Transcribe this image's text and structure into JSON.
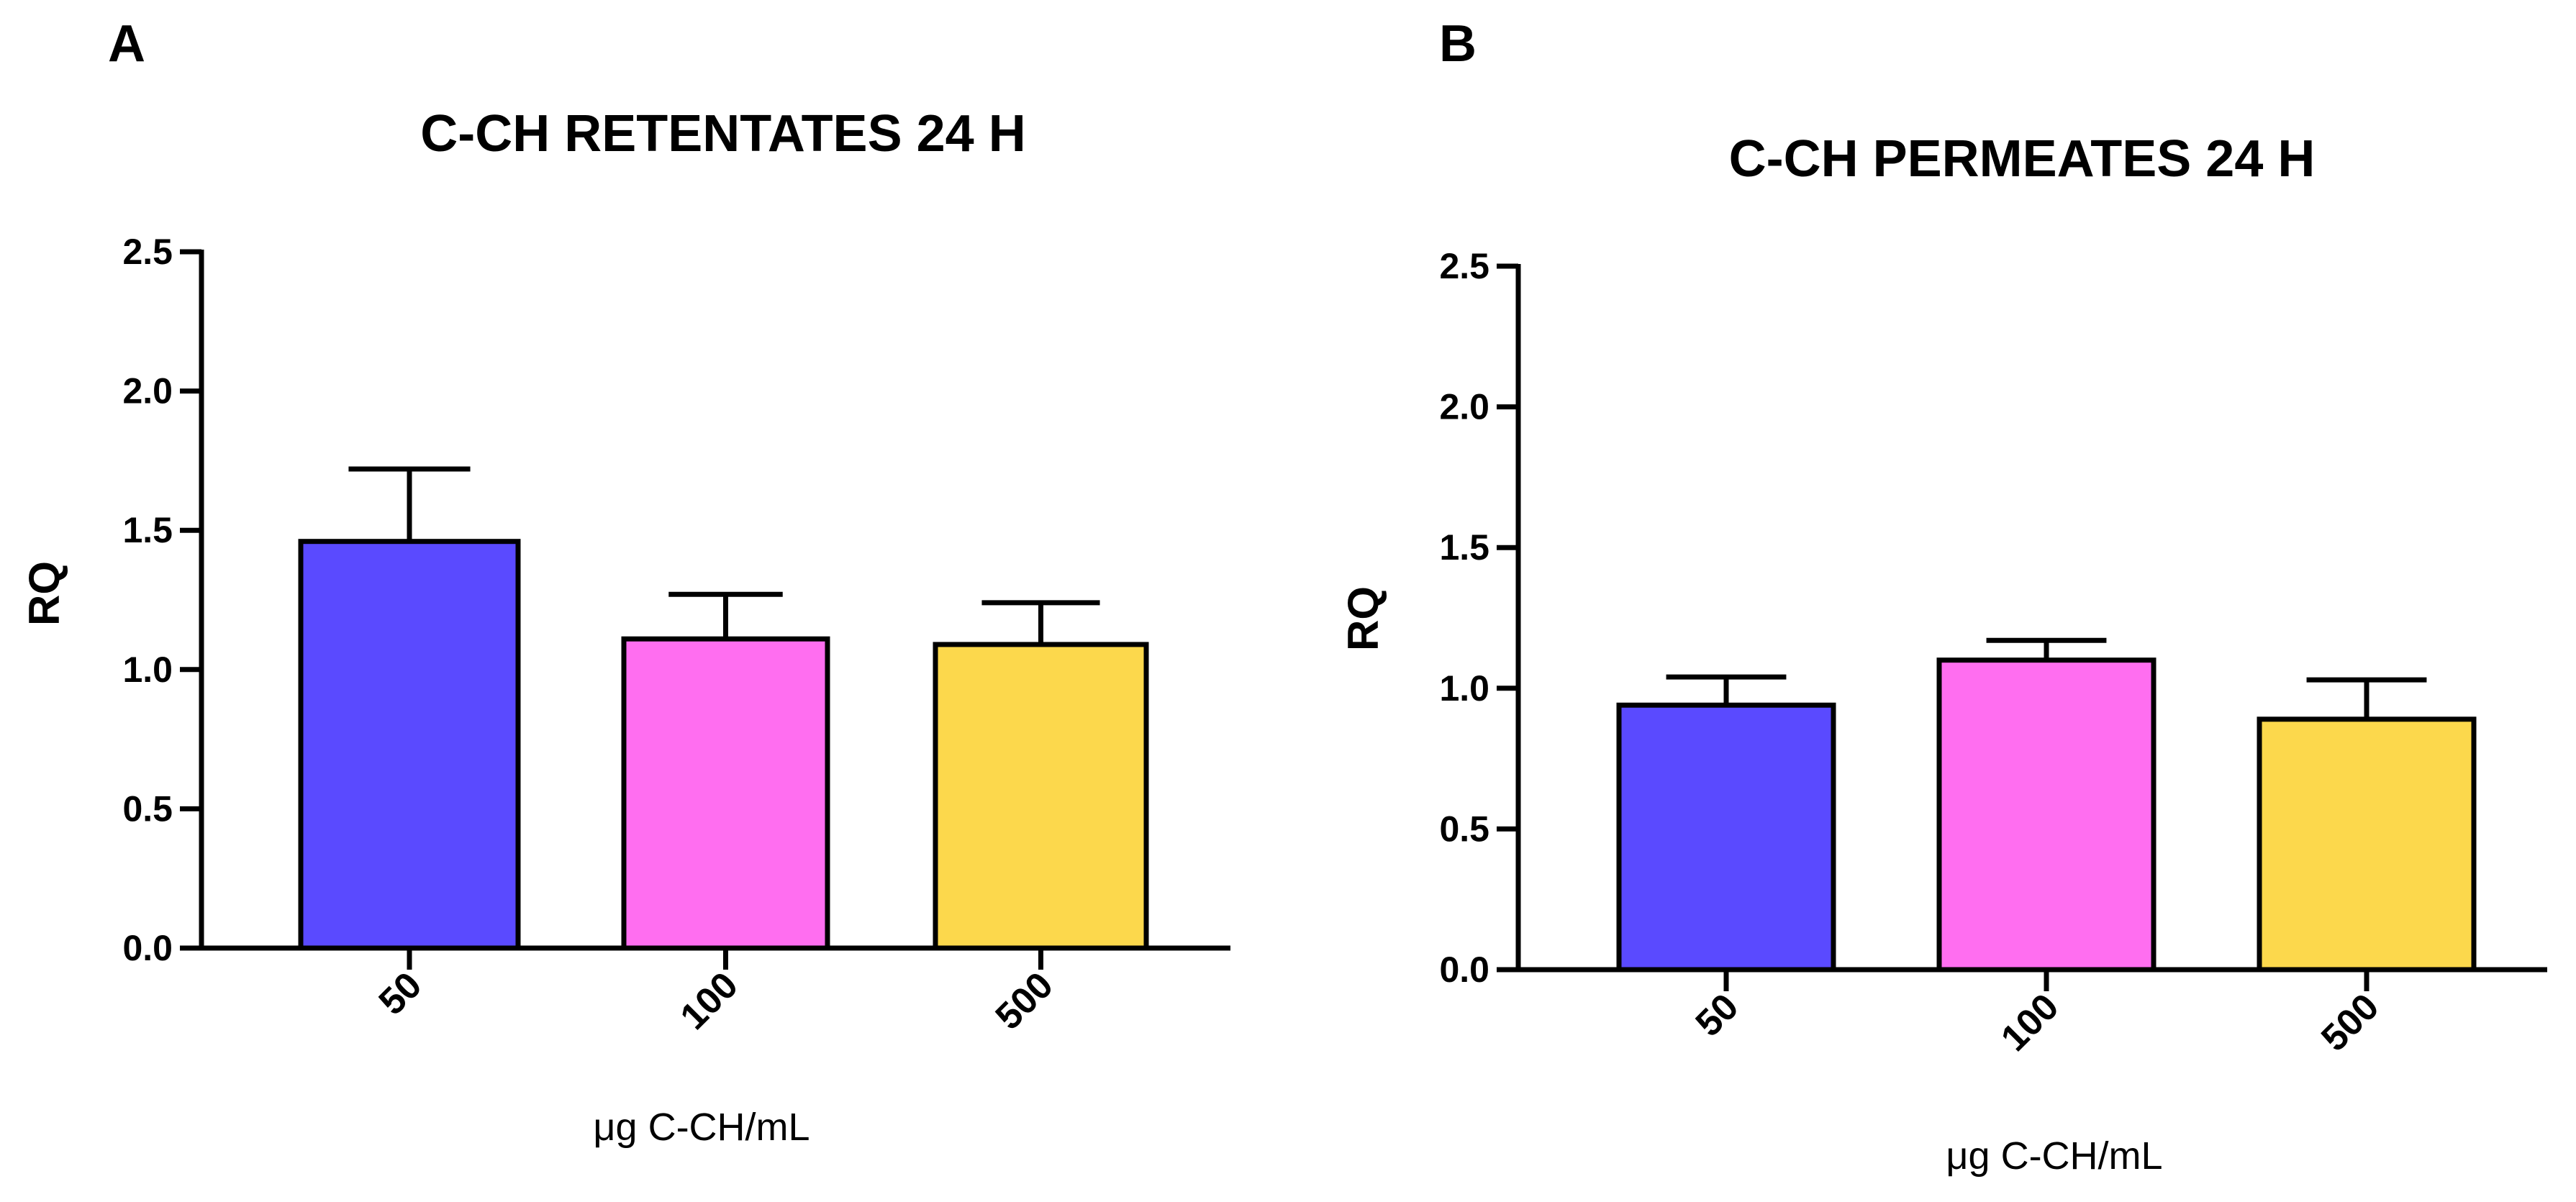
{
  "chart_data": [
    {
      "panel": "A",
      "type": "bar",
      "title": "C-CH RETENTATES 24 H",
      "xlabel": "μg C-CH/mL",
      "ylabel": "RQ",
      "ylim": [
        0,
        2.5
      ],
      "yticks": [
        "0.0",
        "0.5",
        "1.0",
        "1.5",
        "2.0",
        "2.5"
      ],
      "categories": [
        "50",
        "100",
        "500"
      ],
      "values": [
        1.46,
        1.11,
        1.09
      ],
      "errors": [
        0.26,
        0.16,
        0.15
      ],
      "colors": [
        "#5a4aff",
        "#ff6ef0",
        "#fcd84c"
      ]
    },
    {
      "panel": "B",
      "type": "bar",
      "title": "C-CH PERMEATES 24 H",
      "xlabel": "μg C-CH/mL",
      "ylabel": "RQ",
      "ylim": [
        0,
        2.5
      ],
      "yticks": [
        "0.0",
        "0.5",
        "1.0",
        "1.5",
        "2.0",
        "2.5"
      ],
      "categories": [
        "50",
        "100",
        "500"
      ],
      "values": [
        0.94,
        1.1,
        0.89
      ],
      "errors": [
        0.1,
        0.07,
        0.14
      ],
      "colors": [
        "#5a4aff",
        "#ff6ef0",
        "#fcd84c"
      ]
    }
  ]
}
